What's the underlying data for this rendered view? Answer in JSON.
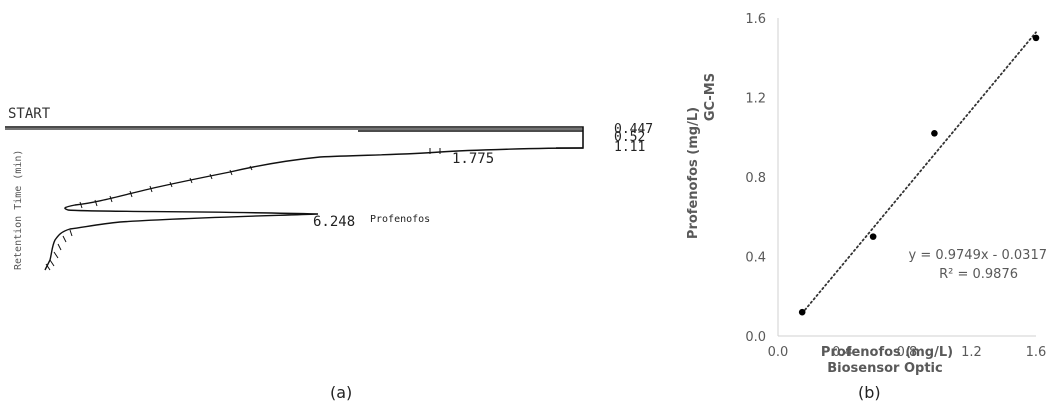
{
  "panels": {
    "a_label": "(a)",
    "b_label": "(b)"
  },
  "chromatogram": {
    "start_label": "START",
    "axis_label": "Retention Time (min)",
    "peaks": [
      {
        "time_label": "0.447"
      },
      {
        "time_label": "0.52"
      },
      {
        "time_label": "1.11"
      },
      {
        "time_label": "1.775"
      },
      {
        "time_label": "6.248",
        "compound": "Profenofos"
      }
    ]
  },
  "chart_data": {
    "type": "scatter",
    "title": "",
    "xlabel": "Profenofos (mg/L)",
    "xlabel_sub": "Biosensor Optic",
    "ylabel": "Profenofos (mg/L)",
    "ylabel_sub": "GC-MS",
    "xlim": [
      0,
      1.6
    ],
    "ylim": [
      0,
      1.6
    ],
    "x_ticks": [
      "0.0",
      "0.4",
      "0.8",
      "1.2",
      "1.6"
    ],
    "y_ticks": [
      "0.0",
      "0.4",
      "0.8",
      "1.2",
      "1.6"
    ],
    "grid": false,
    "points": [
      {
        "x": 0.15,
        "y": 0.12
      },
      {
        "x": 0.59,
        "y": 0.5
      },
      {
        "x": 0.97,
        "y": 1.02
      },
      {
        "x": 1.6,
        "y": 1.5
      }
    ],
    "trendline": {
      "slope": 0.9749,
      "intercept": -0.0317,
      "style": "dotted",
      "x_range": [
        0.15,
        1.6
      ]
    },
    "equation_label": "y = 0.9749x - 0.0317",
    "r2_label": "R² = 0.9876",
    "colors": {
      "points": "#000000",
      "axis": "#d0d0d0",
      "text": "#595959"
    }
  }
}
